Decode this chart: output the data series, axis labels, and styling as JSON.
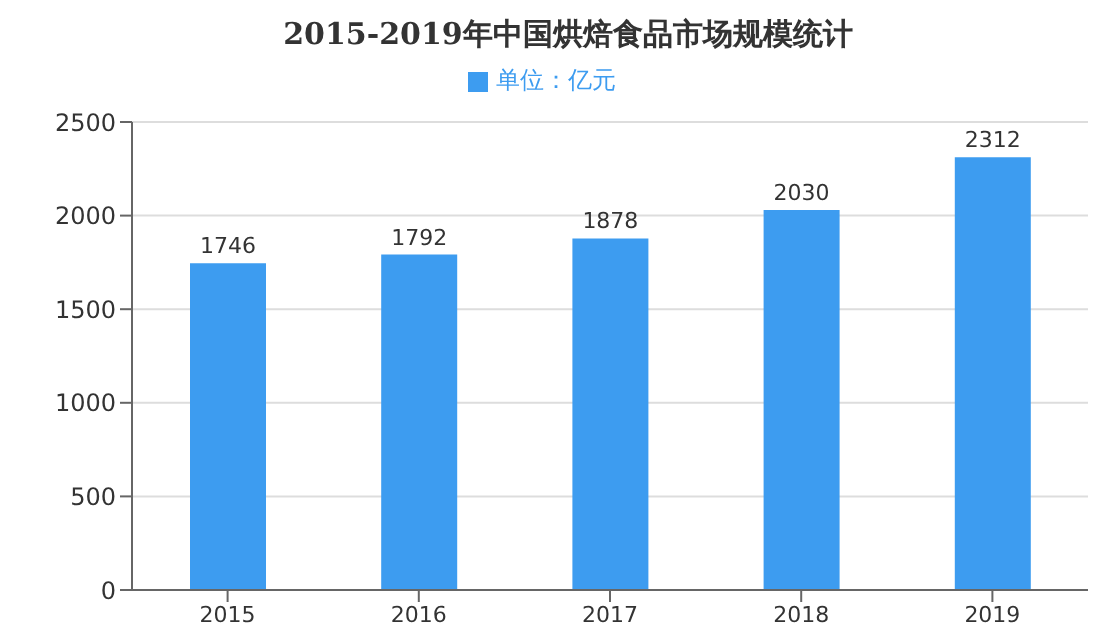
{
  "chart_data": {
    "type": "bar",
    "title": "2015-2019年中国烘焙食品市场规模统计",
    "categories": [
      "2015",
      "2016",
      "2017",
      "2018",
      "2019"
    ],
    "series": [
      {
        "name": "单位：亿元",
        "color": "#3d9cf0",
        "values": [
          1746,
          1792,
          1878,
          2030,
          2312
        ]
      }
    ],
    "ylim": [
      0,
      2500
    ],
    "yticks": [
      0,
      500,
      1000,
      1500,
      2000,
      2500
    ],
    "grid": "y",
    "legend": "top",
    "data_labels": true
  }
}
